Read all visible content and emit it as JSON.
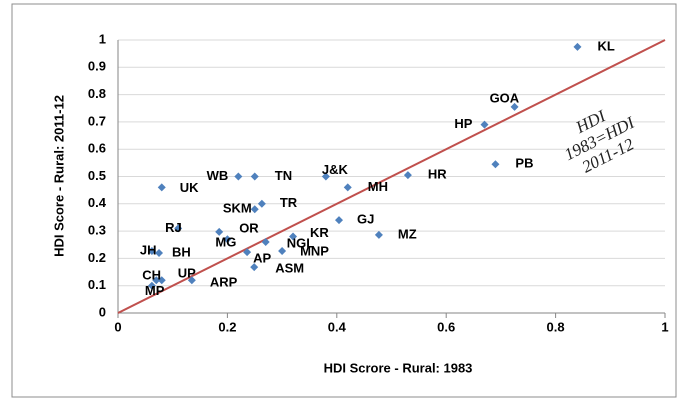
{
  "chart_data": {
    "type": "scatter",
    "x_label": "HDI Scrore - Rural: 1983",
    "y_label": "HDI Score - Rural: 2011-12",
    "annotation": [
      "HDI",
      "1983=HDI",
      "2011-12"
    ],
    "labels": [
      "KL",
      "GOA",
      "HP",
      "PB",
      "HR",
      "MH",
      "J&K",
      "TN",
      "WB",
      "UK",
      "TR",
      "SKM",
      "GJ",
      "RJ",
      "OR",
      "MZ",
      "KR",
      "NGL",
      "MG",
      "JH",
      "BH",
      "MNP",
      "AP",
      "ASM",
      "UP",
      "CH",
      "MP",
      "ARP"
    ],
    "x": [
      0.84,
      0.725,
      0.67,
      0.69,
      0.53,
      0.42,
      0.38,
      0.25,
      0.22,
      0.08,
      0.263,
      0.25,
      0.404,
      0.11,
      0.185,
      0.477,
      0.32,
      0.27,
      0.2,
      0.062,
      0.075,
      0.3,
      0.236,
      0.249,
      0.08,
      0.07,
      0.062,
      0.135
    ],
    "y": [
      0.975,
      0.755,
      0.69,
      0.545,
      0.505,
      0.46,
      0.5,
      0.5,
      0.5,
      0.46,
      0.4,
      0.38,
      0.34,
      0.31,
      0.297,
      0.286,
      0.28,
      0.26,
      0.27,
      0.227,
      0.22,
      0.227,
      0.223,
      0.168,
      0.12,
      0.12,
      0.1,
      0.12
    ],
    "color": "#4f81bd",
    "reference_line": {
      "x": [
        0,
        1
      ],
      "y": [
        0,
        1
      ],
      "color": "#c0504d"
    },
    "xlim": [
      0,
      1
    ],
    "xticks": [
      0,
      0.2,
      0.4,
      0.6,
      0.8,
      1
    ],
    "ylim": [
      0,
      1
    ],
    "yticks": [
      0,
      0.1,
      0.2,
      0.3,
      0.4,
      0.5,
      0.6,
      0.7,
      0.8,
      0.9,
      1
    ],
    "grid": true
  }
}
